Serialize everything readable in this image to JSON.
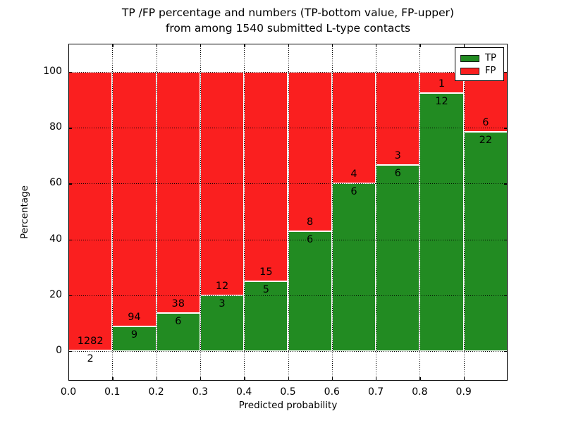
{
  "title": {
    "line1": "TP /FP percentage and numbers (TP-bottom value, FP-upper)",
    "line2": "from among 1540 submitted L-type contacts"
  },
  "chart_data": {
    "type": "bar",
    "subtype": "stacked-100-percent",
    "title_line1": "TP /FP percentage and numbers (TP-bottom value, FP-upper)",
    "title_line2": "from among 1540 submitted L-type contacts",
    "xlabel": "Predicted probability",
    "ylabel": "Percentage",
    "total_submitted": 1540,
    "categories": [
      "0.0-0.1",
      "0.1-0.2",
      "0.2-0.3",
      "0.3-0.4",
      "0.4-0.5",
      "0.5-0.6",
      "0.6-0.7",
      "0.7-0.8",
      "0.8-0.9",
      "0.9-1.0"
    ],
    "series": [
      {
        "name": "TP",
        "color": "#228b22",
        "counts": [
          2,
          9,
          6,
          3,
          5,
          6,
          6,
          6,
          12,
          22
        ]
      },
      {
        "name": "FP",
        "color": "#fa1f1f",
        "counts": [
          1282,
          94,
          38,
          12,
          15,
          8,
          4,
          3,
          1,
          6
        ]
      }
    ],
    "tp_percent_of_bin": [
      0.16,
      8.74,
      13.64,
      20.0,
      25.0,
      42.86,
      60.0,
      66.67,
      92.31,
      78.57
    ],
    "xlim": [
      0.0,
      1.0
    ],
    "ylim": [
      -11,
      110
    ],
    "x_ticks": [
      "0.0",
      "0.1",
      "0.2",
      "0.3",
      "0.4",
      "0.5",
      "0.6",
      "0.7",
      "0.8",
      "0.9"
    ],
    "y_ticks": [
      0,
      20,
      40,
      60,
      80,
      100
    ],
    "grid": true,
    "grid_style": "dotted",
    "legend_position": "upper right",
    "bar_edge_color": "#ffffff"
  }
}
